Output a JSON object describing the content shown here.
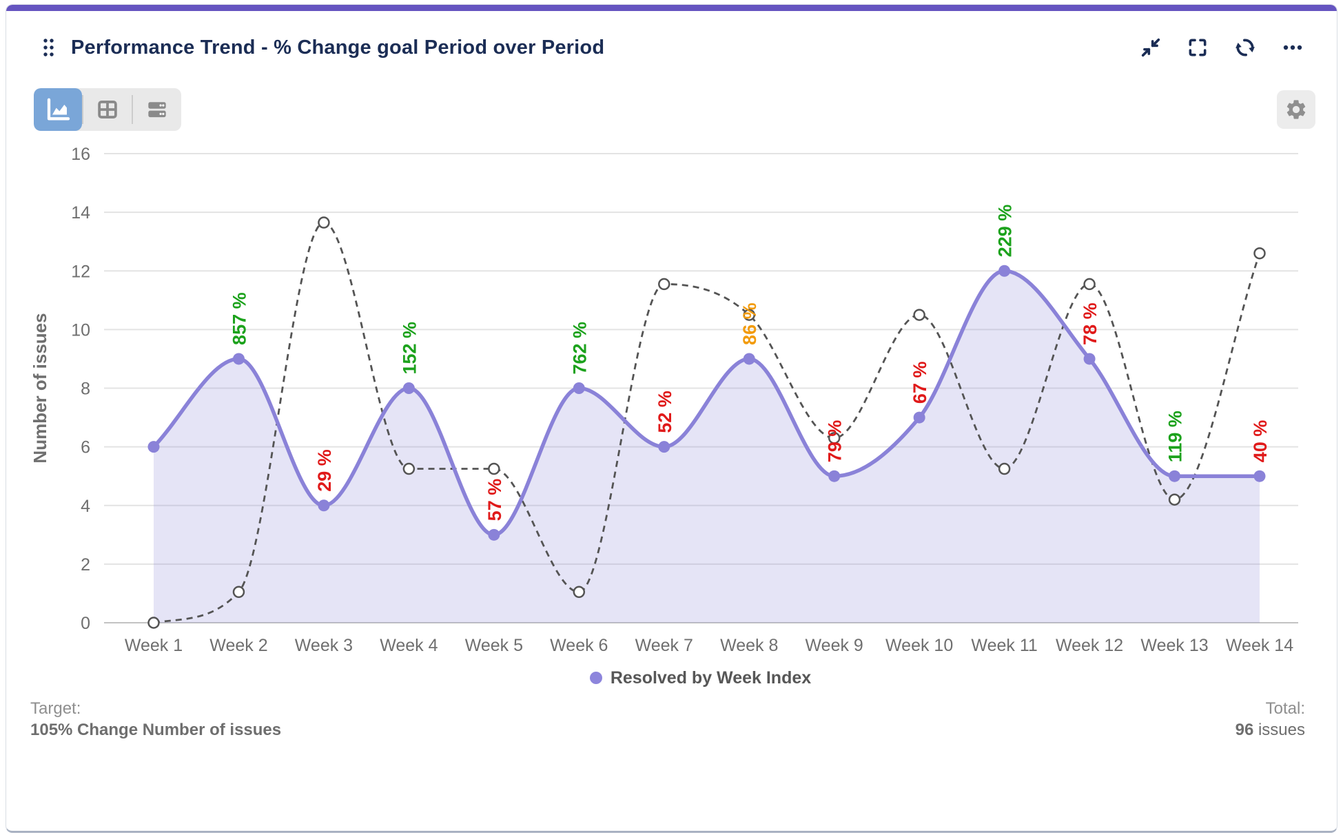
{
  "card": {
    "accent_color": "#6554C0"
  },
  "header": {
    "title": "Performance Trend - % Change goal Period over Period",
    "icons": [
      "drag-handle",
      "collapse",
      "fullscreen",
      "refresh",
      "more-options"
    ]
  },
  "toolbar": {
    "views": [
      "area-chart",
      "table",
      "rows"
    ],
    "active_view": "area-chart",
    "active_color": "#7aa6d8",
    "settings_icon": "gear"
  },
  "chart_data": {
    "type": "area",
    "title": "Performance Trend - % Change goal Period over Period",
    "categories": [
      "Week 1",
      "Week 2",
      "Week 3",
      "Week 4",
      "Week 5",
      "Week 6",
      "Week 7",
      "Week 8",
      "Week 9",
      "Week 10",
      "Week 11",
      "Week 12",
      "Week 13",
      "Week 14"
    ],
    "series": [
      {
        "id": "resolved",
        "name": "Resolved by Week Index",
        "type": "area-line",
        "color": "#8a82d8",
        "fill_opacity": 0.22,
        "values": [
          6,
          9,
          4,
          8,
          3,
          8,
          6,
          9,
          5,
          7,
          12,
          9,
          5,
          5
        ]
      },
      {
        "id": "comparison-dashed",
        "name": "",
        "type": "dashed-line",
        "color": "#545454",
        "values": [
          0,
          1.05,
          13.65,
          5.25,
          5.25,
          1.05,
          11.55,
          10.5,
          6.3,
          10.5,
          5.25,
          11.55,
          4.2,
          12.6
        ]
      }
    ],
    "point_labels": [
      null,
      "857 %",
      "29 %",
      "152 %",
      "57 %",
      "762 %",
      "52 %",
      "86 %",
      "79 %",
      "67 %",
      "229 %",
      "78 %",
      "119 %",
      "40 %"
    ],
    "point_label_colors": [
      null,
      "green",
      "red",
      "green",
      "red",
      "green",
      "red",
      "orange",
      "red",
      "red",
      "green",
      "red",
      "green",
      "red"
    ],
    "label_palette": {
      "green": "#1ca21c",
      "red": "#e01a1a",
      "orange": "#f29b0c"
    },
    "ylabel": "Number of issues",
    "ylim": [
      0,
      16
    ],
    "ytick_step": 2,
    "grid": true,
    "grid_color": "#e3e3e3",
    "zero_line_color": "#c2c2c2",
    "axis_text_color": "#6f6f6f",
    "legend_position": "bottom"
  },
  "legend": {
    "label": "Resolved by Week Index",
    "marker_color": "#8d85dc"
  },
  "footer": {
    "target_label": "Target:",
    "target_value": "105% Change Number of issues",
    "total_label": "Total:",
    "total_value": "96",
    "total_unit": "issues"
  }
}
